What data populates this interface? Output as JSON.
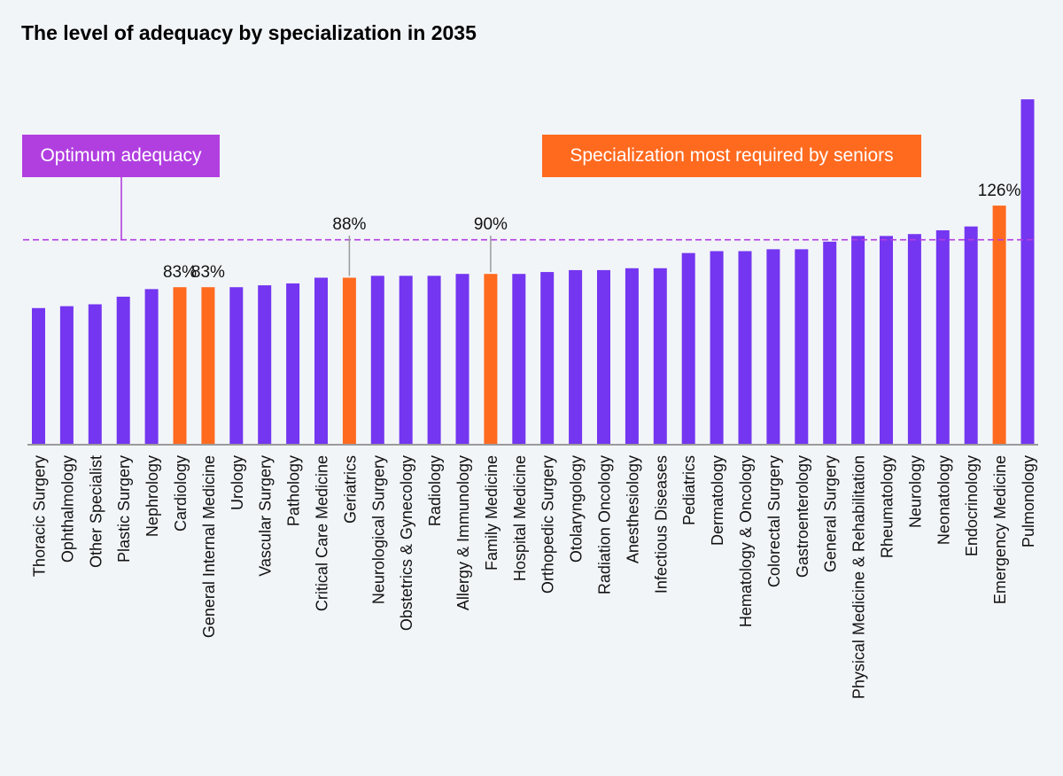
{
  "colors": {
    "background": "#f2f5f8",
    "default_bar": "#7436f0",
    "senior_bar": "#ff6a1f",
    "optimum": "#b13fe0",
    "axis": "#9a9a9a",
    "text": "#111111"
  },
  "legend": {
    "optimum_label": "Optimum adequacy",
    "seniors_label": "Specialization most required by seniors"
  },
  "chart_data": {
    "type": "bar",
    "title": "The level of adequacy by specialization in 2035",
    "xlabel": "",
    "ylabel": "",
    "ylim": [
      0,
      190
    ],
    "reference_line": {
      "label": "Optimum adequacy",
      "value": 108,
      "style": "dashed"
    },
    "grid": false,
    "categories": [
      "Thoracic Surgery",
      "Ophthalmology",
      "Other Specialist",
      "Plastic Surgery",
      "Nephrology",
      "Cardiology",
      "General Internal Medicine",
      "Urology",
      "Vascular Surgery",
      "Pathology",
      "Critical Care Medicine",
      "Geriatrics",
      "Neurological Surgery",
      "Obstetrics & Gynecology",
      "Radiology",
      "Allergy & Immunology",
      "Family Medicine",
      "Hospital Medicine",
      "Orthopedic Surgery",
      "Otolaryngology",
      "Radiation Oncology",
      "Anesthesiology",
      "Infectious Diseases",
      "Pediatrics",
      "Dermatology",
      "Hematology & Oncology",
      "Colorectal Surgery",
      "Gastroenterology",
      "General Surgery",
      "Physical Medicine & Rehabilitation",
      "Rheumatology",
      "Neurology",
      "Neonatology",
      "Endocrinology",
      "Emergency Medicine",
      "Pulmonology"
    ],
    "values": [
      72,
      73,
      74,
      78,
      82,
      83,
      83,
      83,
      84,
      85,
      88,
      88,
      89,
      89,
      89,
      90,
      90,
      90,
      91,
      92,
      92,
      93,
      93,
      101,
      102,
      102,
      103,
      103,
      107,
      110,
      110,
      111,
      113,
      115,
      126,
      182
    ],
    "highlighted": [
      false,
      false,
      false,
      false,
      false,
      true,
      true,
      false,
      false,
      false,
      false,
      true,
      false,
      false,
      false,
      false,
      true,
      false,
      false,
      false,
      false,
      false,
      false,
      false,
      false,
      false,
      false,
      false,
      false,
      false,
      false,
      false,
      false,
      false,
      true,
      false
    ],
    "data_labels": [
      {
        "category": "Cardiology",
        "text": "83%"
      },
      {
        "category": "General Internal Medicine",
        "text": "83%"
      },
      {
        "category": "Geriatrics",
        "text": "88%"
      },
      {
        "category": "Family Medicine",
        "text": "90%"
      },
      {
        "category": "Emergency Medicine",
        "text": "126%"
      }
    ]
  }
}
